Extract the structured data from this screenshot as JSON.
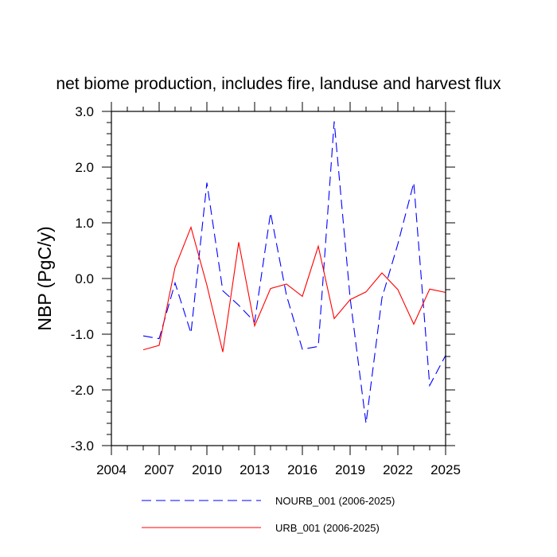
{
  "chart_data": {
    "type": "line",
    "title": "net biome production, includes fire, landuse and harvest flux",
    "xlabel": "",
    "ylabel": "NBP  (PgC/y)",
    "xlim": [
      2004,
      2025
    ],
    "ylim": [
      -3.0,
      3.0
    ],
    "x_ticks": [
      "2004",
      "2007",
      "2010",
      "2013",
      "2016",
      "2019",
      "2022",
      "2025"
    ],
    "y_ticks": [
      "3.0",
      "2.0",
      "1.0",
      "0.0",
      "-1.0",
      "-2.0",
      "-3.0"
    ],
    "grid": false,
    "legend_position": "bottom",
    "x": [
      2006,
      2007,
      2008,
      2009,
      2010,
      2011,
      2012,
      2013,
      2014,
      2015,
      2016,
      2017,
      2018,
      2019,
      2020,
      2021,
      2022,
      2023,
      2024,
      2025
    ],
    "series": [
      {
        "name": "NOURB_001 (2006-2025)",
        "color": "#0000ff",
        "dash": "dashed",
        "values": [
          -1.03,
          -1.08,
          -0.08,
          -0.98,
          1.72,
          -0.22,
          -0.48,
          -0.78,
          1.18,
          -0.3,
          -1.27,
          -1.22,
          2.82,
          -0.35,
          -2.6,
          -0.35,
          0.62,
          1.72,
          -1.92,
          -1.38
        ]
      },
      {
        "name": "URB_001 (2006-2025)",
        "color": "#ff0000",
        "dash": "solid",
        "values": [
          -1.28,
          -1.2,
          0.2,
          0.92,
          -0.12,
          -1.32,
          0.65,
          -0.85,
          -0.18,
          -0.1,
          -0.32,
          0.58,
          -0.72,
          -0.38,
          -0.24,
          0.1,
          -0.2,
          -0.82,
          -0.19,
          -0.25
        ]
      }
    ]
  }
}
